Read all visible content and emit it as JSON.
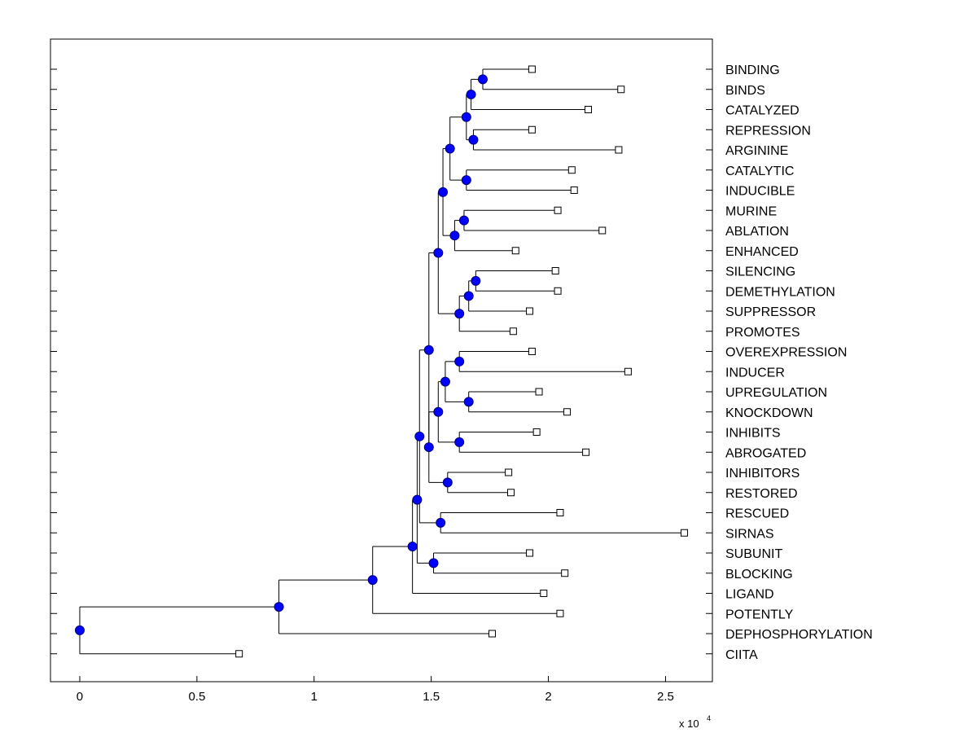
{
  "chart_data": {
    "type": "dendrogram",
    "title": "",
    "xlabel": "",
    "ylabel": "",
    "x_multiplier_text": "x 10",
    "x_multiplier_exponent": "4",
    "xlim": [
      -0.125,
      2.7
    ],
    "x_ticks": [
      {
        "value": 0,
        "label": "0"
      },
      {
        "value": 0.5,
        "label": "0.5"
      },
      {
        "value": 1,
        "label": "1"
      },
      {
        "value": 1.5,
        "label": "1.5"
      },
      {
        "value": 2,
        "label": "2"
      },
      {
        "value": 2.5,
        "label": "2.5"
      }
    ],
    "grid": false,
    "colors": {
      "node_fill": "#0000ff",
      "line": "#000000",
      "leaf_fill": "#ffffff"
    },
    "leaves": [
      {
        "label": "BINDING",
        "x": 1.93
      },
      {
        "label": "BINDS",
        "x": 2.31
      },
      {
        "label": "CATALYZED",
        "x": 2.17
      },
      {
        "label": "REPRESSION",
        "x": 1.93
      },
      {
        "label": "ARGININE",
        "x": 2.3
      },
      {
        "label": "CATALYTIC",
        "x": 2.1
      },
      {
        "label": "INDUCIBLE",
        "x": 2.11
      },
      {
        "label": "MURINE",
        "x": 2.04
      },
      {
        "label": "ABLATION",
        "x": 2.23
      },
      {
        "label": "ENHANCED",
        "x": 1.86
      },
      {
        "label": "SILENCING",
        "x": 2.03
      },
      {
        "label": "DEMETHYLATION",
        "x": 2.04
      },
      {
        "label": "SUPPRESSOR",
        "x": 1.92
      },
      {
        "label": "PROMOTES",
        "x": 1.85
      },
      {
        "label": "OVEREXPRESSION",
        "x": 1.93
      },
      {
        "label": "INDUCER",
        "x": 2.34
      },
      {
        "label": "UPREGULATION",
        "x": 1.96
      },
      {
        "label": "KNOCKDOWN",
        "x": 2.08
      },
      {
        "label": "INHIBITS",
        "x": 1.95
      },
      {
        "label": "ABROGATED",
        "x": 2.16
      },
      {
        "label": "INHIBITORS",
        "x": 1.83
      },
      {
        "label": "RESTORED",
        "x": 1.84
      },
      {
        "label": "RESCUED",
        "x": 2.05
      },
      {
        "label": "SIRNAS",
        "x": 2.58
      },
      {
        "label": "SUBUNIT",
        "x": 1.92
      },
      {
        "label": "BLOCKING",
        "x": 2.07
      },
      {
        "label": "LIGAND",
        "x": 1.98
      },
      {
        "label": "POTENTLY",
        "x": 2.05
      },
      {
        "label": "DEPHOSPHORYLATION",
        "x": 1.76
      },
      {
        "label": "CIITA",
        "x": 0.68
      }
    ],
    "internal_nodes": [
      {
        "id": "n1",
        "x": 1.72,
        "children": [
          "L0",
          "L1"
        ]
      },
      {
        "id": "n2",
        "x": 1.67,
        "children": [
          "n1",
          "L2"
        ]
      },
      {
        "id": "n3",
        "x": 1.68,
        "children": [
          "L3",
          "L4"
        ]
      },
      {
        "id": "n4",
        "x": 1.65,
        "children": [
          "n2",
          "n3"
        ]
      },
      {
        "id": "n5",
        "x": 1.65,
        "children": [
          "L5",
          "L6"
        ]
      },
      {
        "id": "n6",
        "x": 1.58,
        "children": [
          "n4",
          "n5"
        ]
      },
      {
        "id": "n7",
        "x": 1.64,
        "children": [
          "L7",
          "L8"
        ]
      },
      {
        "id": "n8",
        "x": 1.6,
        "children": [
          "n7",
          "L9"
        ]
      },
      {
        "id": "n9",
        "x": 1.55,
        "children": [
          "n6",
          "n8"
        ]
      },
      {
        "id": "n10",
        "x": 1.69,
        "children": [
          "L10",
          "L11"
        ]
      },
      {
        "id": "n11",
        "x": 1.66,
        "children": [
          "n10",
          "L12"
        ]
      },
      {
        "id": "n12",
        "x": 1.62,
        "children": [
          "n11",
          "L13"
        ]
      },
      {
        "id": "n13",
        "x": 1.53,
        "children": [
          "n9",
          "n12"
        ]
      },
      {
        "id": "n14",
        "x": 1.62,
        "children": [
          "L14",
          "L15"
        ]
      },
      {
        "id": "n15",
        "x": 1.66,
        "children": [
          "L16",
          "L17"
        ]
      },
      {
        "id": "n16",
        "x": 1.56,
        "children": [
          "n14",
          "n15"
        ]
      },
      {
        "id": "n17",
        "x": 1.62,
        "children": [
          "L18",
          "L19"
        ]
      },
      {
        "id": "n18",
        "x": 1.53,
        "children": [
          "n16",
          "n17"
        ]
      },
      {
        "id": "n19",
        "x": 1.57,
        "children": [
          "L20",
          "L21"
        ]
      },
      {
        "id": "n20",
        "x": 1.49,
        "children": [
          "n18",
          "n19"
        ]
      },
      {
        "id": "n21",
        "x": 1.49,
        "children": [
          "n13",
          "n20"
        ]
      },
      {
        "id": "n22",
        "x": 1.54,
        "children": [
          "L22",
          "L23"
        ]
      },
      {
        "id": "n23",
        "x": 1.45,
        "children": [
          "n21",
          "n22"
        ]
      },
      {
        "id": "n24",
        "x": 1.51,
        "children": [
          "L24",
          "L25"
        ]
      },
      {
        "id": "n25",
        "x": 1.44,
        "children": [
          "n23",
          "n24"
        ]
      },
      {
        "id": "n26",
        "x": 1.42,
        "children": [
          "n25",
          "L26"
        ]
      },
      {
        "id": "n27",
        "x": 1.25,
        "children": [
          "n26",
          "L27"
        ]
      },
      {
        "id": "n28",
        "x": 0.85,
        "children": [
          "n27",
          "L28"
        ]
      },
      {
        "id": "n29",
        "x": 0.0,
        "children": [
          "n28",
          "L29"
        ]
      }
    ]
  }
}
